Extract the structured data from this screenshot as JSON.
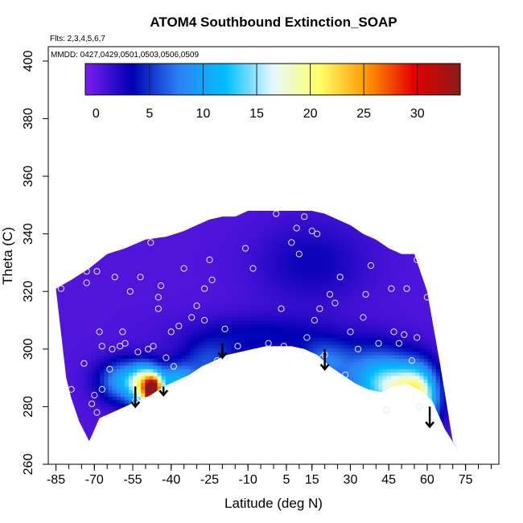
{
  "chart_data": {
    "type": "heatmap",
    "title": "ATOM4 Southbound Extinction_SOAP",
    "annotations": [
      "Flts: 2,3,4,5,6,7",
      "MMDD: 0427,0429,0501,0503,0506,0509"
    ],
    "xlabel": "Latitude (deg N)",
    "ylabel": "Theta (C)",
    "xlim": [
      -88,
      88
    ],
    "ylim": [
      260,
      405
    ],
    "xticks": [
      -85,
      -70,
      -55,
      -40,
      -25,
      -10,
      5,
      15,
      30,
      45,
      60,
      75
    ],
    "xtick_labels": [
      "-85",
      "-70",
      "-55",
      "-40",
      "-25",
      "-10",
      "5",
      "15",
      "30",
      "45",
      "60",
      "75"
    ],
    "yticks": [
      260,
      280,
      300,
      320,
      340,
      360,
      380,
      400
    ],
    "ytick_labels": [
      "260",
      "280",
      "300",
      "320",
      "340",
      "360",
      "380",
      "400"
    ],
    "colorbar": {
      "min": -1,
      "max": 34,
      "ticks": [
        0,
        5,
        10,
        15,
        20,
        25,
        30
      ],
      "tick_labels": [
        "0",
        "5",
        "10",
        "15",
        "20",
        "25",
        "30"
      ]
    },
    "colors": [
      "#7a1ff0",
      "#0000b4",
      "#2c82f5",
      "#00bfff",
      "#e6f8ff",
      "#ffff66",
      "#ff9900",
      "#e60000",
      "#8b1a1a"
    ],
    "domain_outline": {
      "lat": [
        -85,
        -79,
        -72,
        -65,
        -58,
        -50,
        -42,
        -35,
        -30,
        -25,
        -20,
        -15,
        -10,
        -5,
        0,
        5,
        10,
        15,
        20,
        25,
        30,
        35,
        40,
        45,
        50,
        55,
        60,
        65,
        70,
        72,
        67,
        62,
        57,
        52,
        47,
        42,
        37,
        32,
        27,
        22,
        17,
        12,
        7,
        2,
        -3,
        -8,
        -13,
        -18,
        -23,
        -28,
        -33,
        -38,
        -43,
        -48,
        -53,
        -58,
        -63,
        -68,
        -72,
        -76,
        -79,
        -81,
        -85
      ],
      "theta": [
        321,
        324,
        328,
        333,
        335,
        338,
        339,
        341,
        343,
        345,
        346,
        346,
        348,
        348,
        348,
        348,
        348,
        348,
        347,
        345,
        343,
        340,
        338,
        335,
        333,
        333,
        320,
        295,
        268,
        265,
        272,
        282,
        286,
        288,
        287,
        285,
        286,
        288,
        291,
        294,
        298,
        300,
        301,
        301,
        301,
        300,
        299,
        298,
        296,
        294,
        291,
        289,
        287,
        284,
        282,
        280,
        278,
        276,
        268,
        275,
        283,
        290,
        321
      ]
    },
    "field_blobs": [
      {
        "lat": -47,
        "theta": 285,
        "value": 26,
        "sigma_lat": 2.2,
        "sigma_theta": 3.5
      },
      {
        "lat": -50,
        "theta": 287,
        "value": 16,
        "sigma_lat": 4,
        "sigma_theta": 5
      },
      {
        "lat": -58,
        "theta": 289,
        "value": 10,
        "sigma_lat": 7,
        "sigma_theta": 5
      },
      {
        "lat": -38,
        "theta": 289,
        "value": 10,
        "sigma_lat": 6,
        "sigma_theta": 4
      },
      {
        "lat": -25,
        "theta": 296,
        "value": 5,
        "sigma_lat": 8,
        "sigma_theta": 5
      },
      {
        "lat": 20,
        "theta": 296,
        "value": 6,
        "sigma_lat": 7,
        "sigma_theta": 5
      },
      {
        "lat": 40,
        "theta": 290,
        "value": 9,
        "sigma_lat": 10,
        "sigma_theta": 8
      },
      {
        "lat": 57,
        "theta": 282,
        "value": 13,
        "sigma_lat": 5,
        "sigma_theta": 8
      },
      {
        "lat": 50,
        "theta": 286,
        "value": 11,
        "sigma_lat": 8,
        "sigma_theta": 6
      },
      {
        "lat": -5,
        "theta": 305,
        "value": 3,
        "sigma_lat": 20,
        "sigma_theta": 5
      },
      {
        "lat": 15,
        "theta": 330,
        "value": 2.5,
        "sigma_lat": 15,
        "sigma_theta": 10
      }
    ],
    "background_value": 0.5,
    "sample_points": {
      "lat": [
        -83,
        -79,
        -74,
        -71,
        -69,
        -68,
        -67,
        -64,
        -60,
        -56,
        -52,
        -47,
        -45,
        -48,
        -44,
        -40,
        -35,
        -32,
        -27,
        -25,
        -22,
        -19,
        -14,
        -8,
        3,
        7,
        12,
        15,
        17,
        18,
        20,
        26,
        30,
        33,
        38,
        44,
        49,
        52,
        54,
        57,
        60,
        -71,
        -73,
        -69,
        -67,
        -63,
        -59,
        -54,
        -49,
        -45,
        -42,
        -37,
        -30,
        -24,
        -19,
        -11,
        -2,
        4,
        9,
        13,
        16,
        22,
        28,
        35,
        41,
        46,
        51,
        56,
        -73,
        -70,
        -62,
        -58,
        -53,
        -39,
        -27,
        1,
        10,
        19,
        24,
        36,
        47,
        56
      ],
      "theta": [
        321,
        286,
        295,
        281,
        278,
        306,
        301,
        293,
        301,
        320,
        325,
        301,
        314,
        337,
        322,
        306,
        328,
        311,
        321,
        331,
        296,
        297,
        301,
        328,
        314,
        337,
        346,
        341,
        340,
        314,
        298,
        325,
        306,
        300,
        329,
        279,
        302,
        321,
        296,
        280,
        318,
        331,
        323,
        327,
        286,
        300,
        306,
        282,
        300,
        318,
        297,
        308,
        315,
        324,
        307,
        335,
        302,
        301,
        342,
        304,
        310,
        319,
        291,
        311,
        302,
        321,
        305,
        304,
        327,
        284,
        325,
        302,
        299,
        294,
        310,
        347,
        333,
        297,
        316,
        319,
        306,
        331
      ]
    },
    "arrows": {
      "lat": [
        -54,
        -43,
        -20,
        20,
        61
      ],
      "theta_top": [
        287,
        287,
        302,
        300,
        280
      ],
      "theta_bottom": [
        280,
        284,
        297,
        293,
        273
      ]
    }
  }
}
